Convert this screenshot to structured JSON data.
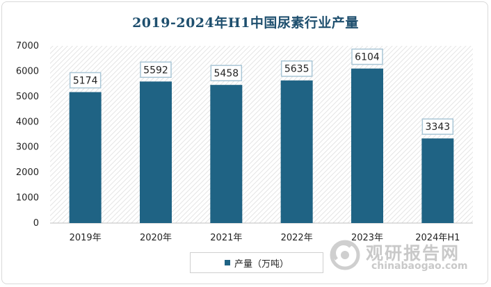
{
  "chart_data": {
    "type": "bar",
    "title": "2019-2024年H1中国尿素行业产量",
    "categories": [
      "2019年",
      "2020年",
      "2021年",
      "2022年",
      "2023年",
      "2024年H1"
    ],
    "series": [
      {
        "name": "产量（万吨）",
        "values": [
          5174,
          5592,
          5458,
          5635,
          6104,
          3343
        ]
      }
    ],
    "data_labels": [
      "5174",
      "5592",
      "5458",
      "5635",
      "6104",
      "3343"
    ],
    "yticks": [
      "0",
      "1000",
      "2000",
      "3000",
      "4000",
      "5000",
      "6000",
      "7000"
    ],
    "ylim": [
      0,
      7000
    ],
    "grid": false,
    "plot_background": "diagonal-hatch",
    "legend_position": "bottom-center",
    "colors": {
      "bar": "#1f6384",
      "label_border": "#a9c6d6",
      "title": "#1e4f6e"
    }
  },
  "watermark": {
    "name": "观研报告网",
    "url": "chinabaogao.com",
    "icon": "camera-lens-logo-icon"
  }
}
